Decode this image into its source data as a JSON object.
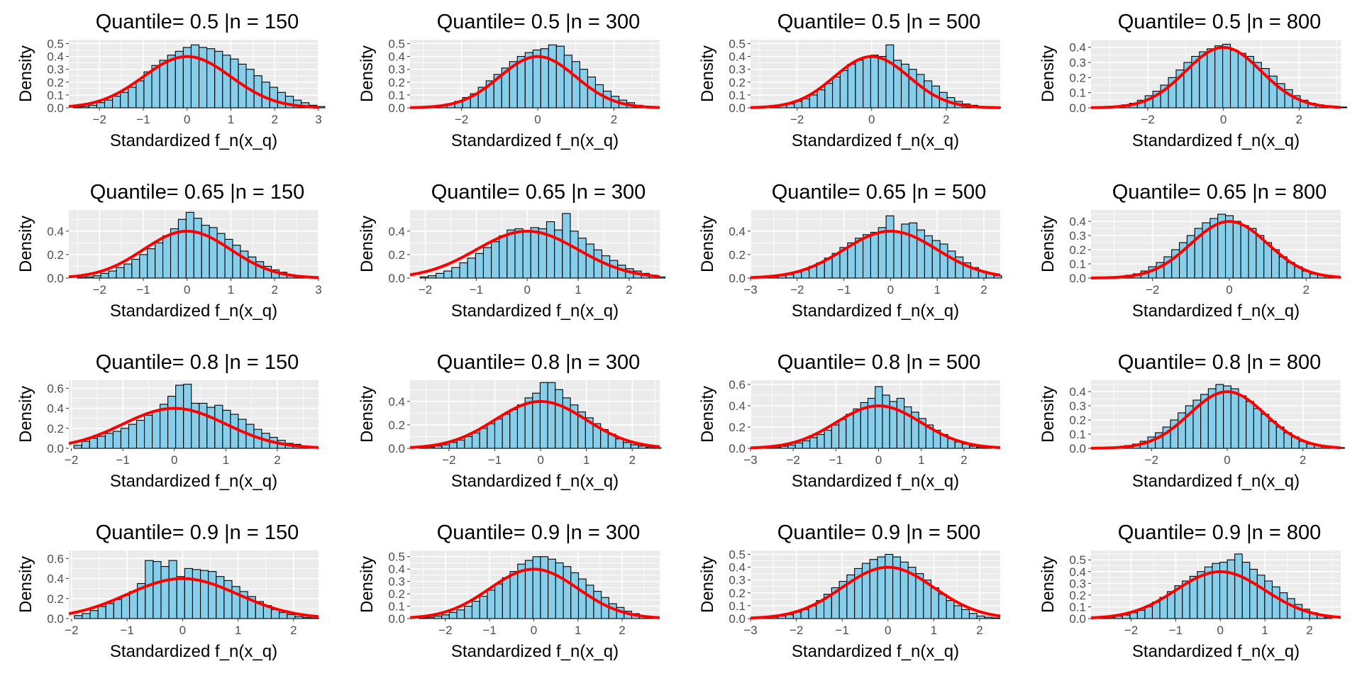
{
  "figure": {
    "type": "faceted-histogram-grid",
    "x_axis_label": "Standardized f_n(x_q)",
    "y_axis_label": "Density",
    "panel_background": "#ebebeb",
    "grid_color": "#ffffff",
    "bar_fill": "#87ceeb",
    "bar_outline": "#000000",
    "curve_color": "#ff0000",
    "curve_label": "standard normal density"
  },
  "chart_data": [
    {
      "type": "bar",
      "title": "Quantile= 0.5 |n = 150",
      "xlabel": "Standardized f_n(x_q)",
      "ylabel": "Density",
      "xlim": [
        -2.7,
        3.0
      ],
      "ylim": [
        0,
        0.53
      ],
      "xticks": [
        -2,
        -1,
        0,
        1,
        2,
        3
      ],
      "yticks": [
        0.0,
        0.1,
        0.2,
        0.3,
        0.4,
        0.5
      ],
      "yticklabels": [
        "0.0",
        "0.1",
        "0.2",
        "0.3",
        "0.4",
        "0.5"
      ],
      "bins": {
        "start": -2.6,
        "width": 0.1795,
        "values": [
          0.005,
          0.01,
          0.02,
          0.04,
          0.06,
          0.09,
          0.12,
          0.16,
          0.21,
          0.28,
          0.33,
          0.37,
          0.41,
          0.44,
          0.47,
          0.49,
          0.47,
          0.46,
          0.44,
          0.41,
          0.38,
          0.34,
          0.3,
          0.25,
          0.2,
          0.16,
          0.12,
          0.09,
          0.06,
          0.04,
          0.02,
          0.01
        ]
      }
    },
    {
      "type": "bar",
      "title": "Quantile= 0.5 |n = 300",
      "xlabel": "Standardized f_n(x_q)",
      "ylabel": "Density",
      "xlim": [
        -3.35,
        3.2
      ],
      "ylim": [
        0,
        0.53
      ],
      "xticks": [
        -2,
        0,
        2
      ],
      "yticks": [
        0.0,
        0.1,
        0.2,
        0.3,
        0.4,
        0.5
      ],
      "yticklabels": [
        "0.0",
        "0.1",
        "0.2",
        "0.3",
        "0.4",
        "0.5"
      ],
      "bins": {
        "start": -3.2,
        "width": 0.205,
        "values": [
          0.005,
          0.005,
          0.01,
          0.02,
          0.03,
          0.05,
          0.08,
          0.11,
          0.16,
          0.21,
          0.26,
          0.31,
          0.36,
          0.4,
          0.43,
          0.45,
          0.46,
          0.49,
          0.48,
          0.41,
          0.36,
          0.3,
          0.24,
          0.18,
          0.13,
          0.09,
          0.06,
          0.04,
          0.02,
          0.01,
          0.005
        ]
      }
    },
    {
      "type": "bar",
      "title": "Quantile= 0.5 |n = 500",
      "xlabel": "Standardized f_n(x_q)",
      "ylabel": "Density",
      "xlim": [
        -3.25,
        3.45
      ],
      "ylim": [
        0,
        0.53
      ],
      "xticks": [
        -2,
        0,
        2
      ],
      "yticks": [
        0.0,
        0.1,
        0.2,
        0.3,
        0.4,
        0.5
      ],
      "yticklabels": [
        "0.0",
        "0.1",
        "0.2",
        "0.3",
        "0.4",
        "0.5"
      ],
      "bins": {
        "start": -3.1,
        "width": 0.205,
        "values": [
          0.005,
          0.01,
          0.01,
          0.02,
          0.03,
          0.05,
          0.07,
          0.1,
          0.14,
          0.19,
          0.24,
          0.29,
          0.34,
          0.37,
          0.39,
          0.41,
          0.4,
          0.49,
          0.37,
          0.34,
          0.3,
          0.26,
          0.21,
          0.17,
          0.12,
          0.08,
          0.05,
          0.03,
          0.02,
          0.01,
          0.01,
          0.005
        ]
      }
    },
    {
      "type": "bar",
      "title": "Quantile= 0.5 |n = 800",
      "xlabel": "Standardized f_n(x_q)",
      "ylabel": "Density",
      "xlim": [
        -3.5,
        3.1
      ],
      "ylim": [
        0,
        0.45
      ],
      "xticks": [
        -2,
        0,
        2
      ],
      "yticks": [
        0.0,
        0.1,
        0.2,
        0.3,
        0.4
      ],
      "yticklabels": [
        "0.0",
        "0.1",
        "0.2",
        "0.3",
        "0.4"
      ],
      "bins": {
        "start": -3.3,
        "width": 0.205,
        "values": [
          0.005,
          0.005,
          0.01,
          0.02,
          0.03,
          0.05,
          0.08,
          0.11,
          0.15,
          0.2,
          0.25,
          0.3,
          0.34,
          0.37,
          0.39,
          0.41,
          0.42,
          0.38,
          0.36,
          0.34,
          0.3,
          0.26,
          0.21,
          0.16,
          0.12,
          0.08,
          0.05,
          0.03,
          0.02,
          0.01,
          0.005,
          0.005
        ]
      }
    },
    {
      "type": "bar",
      "title": "Quantile= 0.65 |n = 150",
      "xlabel": "Standardized f_n(x_q)",
      "ylabel": "Density",
      "xlim": [
        -2.7,
        3.0
      ],
      "ylim": [
        0,
        0.58
      ],
      "xticks": [
        -2,
        -1,
        0,
        1,
        2,
        3
      ],
      "yticks": [
        0.0,
        0.2,
        0.4
      ],
      "yticklabels": [
        "0.0",
        "0.2",
        "0.4"
      ],
      "bins": {
        "start": -2.5,
        "width": 0.177,
        "values": [
          0.005,
          0.01,
          0.02,
          0.04,
          0.06,
          0.09,
          0.12,
          0.16,
          0.2,
          0.25,
          0.3,
          0.36,
          0.42,
          0.5,
          0.56,
          0.51,
          0.45,
          0.43,
          0.38,
          0.33,
          0.28,
          0.23,
          0.18,
          0.14,
          0.1,
          0.07,
          0.05,
          0.03,
          0.02,
          0.01,
          0.005
        ]
      }
    },
    {
      "type": "bar",
      "title": "Quantile= 0.65 |n = 300",
      "xlabel": "Standardized f_n(x_q)",
      "ylabel": "Density",
      "xlim": [
        -2.3,
        2.6
      ],
      "ylim": [
        0,
        0.58
      ],
      "xticks": [
        -2,
        -1,
        0,
        1,
        2
      ],
      "yticks": [
        0.0,
        0.2,
        0.4
      ],
      "yticklabels": [
        "0.0",
        "0.2",
        "0.4"
      ],
      "bins": {
        "start": -2.1,
        "width": 0.155,
        "values": [
          0.01,
          0.02,
          0.04,
          0.06,
          0.09,
          0.13,
          0.17,
          0.21,
          0.26,
          0.31,
          0.36,
          0.41,
          0.42,
          0.4,
          0.43,
          0.42,
          0.48,
          0.41,
          0.55,
          0.4,
          0.34,
          0.29,
          0.24,
          0.19,
          0.15,
          0.11,
          0.08,
          0.06,
          0.04,
          0.02,
          0.01
        ]
      }
    },
    {
      "type": "bar",
      "title": "Quantile= 0.65 |n = 500",
      "xlabel": "Standardized f_n(x_q)",
      "ylabel": "Density",
      "xlim": [
        -3.0,
        2.35
      ],
      "ylim": [
        0,
        0.58
      ],
      "xticks": [
        -3,
        -2,
        -1,
        0,
        1,
        2
      ],
      "yticks": [
        0.0,
        0.2,
        0.4
      ],
      "yticklabels": [
        "0.0",
        "0.2",
        "0.4"
      ],
      "bins": {
        "start": -2.9,
        "width": 0.165,
        "values": [
          0.005,
          0.01,
          0.01,
          0.02,
          0.03,
          0.05,
          0.07,
          0.1,
          0.13,
          0.17,
          0.21,
          0.26,
          0.3,
          0.34,
          0.37,
          0.39,
          0.43,
          0.53,
          0.39,
          0.46,
          0.47,
          0.41,
          0.36,
          0.32,
          0.29,
          0.23,
          0.18,
          0.13,
          0.09,
          0.06,
          0.04,
          0.02
        ]
      }
    },
    {
      "type": "bar",
      "title": "Quantile= 0.65 |n = 800",
      "xlabel": "Standardized f_n(x_q)",
      "ylabel": "Density",
      "xlim": [
        -3.6,
        2.9
      ],
      "ylim": [
        0,
        0.48
      ],
      "xticks": [
        -2,
        0,
        2
      ],
      "yticks": [
        0.0,
        0.1,
        0.2,
        0.3,
        0.4
      ],
      "yticklabels": [
        "0.0",
        "0.1",
        "0.2",
        "0.3",
        "0.4"
      ],
      "bins": {
        "start": -3.3,
        "width": 0.2,
        "values": [
          0.005,
          0.005,
          0.01,
          0.02,
          0.03,
          0.05,
          0.08,
          0.11,
          0.15,
          0.2,
          0.25,
          0.3,
          0.35,
          0.39,
          0.42,
          0.45,
          0.44,
          0.4,
          0.37,
          0.35,
          0.3,
          0.25,
          0.2,
          0.15,
          0.11,
          0.08,
          0.05,
          0.03,
          0.02,
          0.01,
          0.005
        ]
      }
    },
    {
      "type": "bar",
      "title": "Quantile= 0.8 |n = 150",
      "xlabel": "Standardized f_n(x_q)",
      "ylabel": "Density",
      "xlim": [
        -2.05,
        2.8
      ],
      "ylim": [
        0,
        0.68
      ],
      "xticks": [
        -2,
        -1,
        0,
        1,
        2
      ],
      "yticks": [
        0.0,
        0.2,
        0.4,
        0.6
      ],
      "yticklabels": [
        "0.0",
        "0.2",
        "0.4",
        "0.6"
      ],
      "bins": {
        "start": -1.95,
        "width": 0.152,
        "values": [
          0.03,
          0.07,
          0.1,
          0.12,
          0.15,
          0.17,
          0.2,
          0.24,
          0.28,
          0.33,
          0.37,
          0.44,
          0.52,
          0.63,
          0.64,
          0.45,
          0.45,
          0.41,
          0.43,
          0.38,
          0.34,
          0.29,
          0.24,
          0.19,
          0.15,
          0.11,
          0.08,
          0.05,
          0.04,
          0.02,
          0.01
        ]
      }
    },
    {
      "type": "bar",
      "title": "Quantile= 0.8 |n = 300",
      "xlabel": "Standardized f_n(x_q)",
      "ylabel": "Density",
      "xlim": [
        -2.85,
        2.6
      ],
      "ylim": [
        0,
        0.58
      ],
      "xticks": [
        -2,
        -1,
        0,
        1,
        2
      ],
      "yticks": [
        0.0,
        0.2,
        0.4
      ],
      "yticklabels": [
        "0.0",
        "0.2",
        "0.4"
      ],
      "bins": {
        "start": -2.65,
        "width": 0.165,
        "values": [
          0.005,
          0.01,
          0.02,
          0.03,
          0.05,
          0.07,
          0.1,
          0.13,
          0.17,
          0.21,
          0.25,
          0.29,
          0.33,
          0.37,
          0.43,
          0.47,
          0.56,
          0.56,
          0.5,
          0.43,
          0.37,
          0.31,
          0.26,
          0.21,
          0.16,
          0.12,
          0.08,
          0.05,
          0.03,
          0.02,
          0.01,
          0.005
        ]
      }
    },
    {
      "type": "bar",
      "title": "Quantile= 0.8 |n = 500",
      "xlabel": "Standardized f_n(x_q)",
      "ylabel": "Density",
      "xlim": [
        -3.0,
        2.85
      ],
      "ylim": [
        0,
        0.64
      ],
      "xticks": [
        -3,
        -2,
        -1,
        0,
        1,
        2
      ],
      "yticks": [
        0.0,
        0.2,
        0.4,
        0.6
      ],
      "yticklabels": [
        "0.0",
        "0.2",
        "0.4",
        "0.6"
      ],
      "bins": {
        "start": -2.8,
        "width": 0.17,
        "values": [
          0.005,
          0.005,
          0.01,
          0.02,
          0.03,
          0.05,
          0.07,
          0.1,
          0.13,
          0.17,
          0.22,
          0.27,
          0.32,
          0.37,
          0.43,
          0.47,
          0.58,
          0.5,
          0.44,
          0.47,
          0.39,
          0.34,
          0.28,
          0.22,
          0.17,
          0.13,
          0.09,
          0.06,
          0.04,
          0.02,
          0.01,
          0.005
        ]
      }
    },
    {
      "type": "bar",
      "title": "Quantile= 0.8 |n = 800",
      "xlabel": "Standardized f_n(x_q)",
      "ylabel": "Density",
      "xlim": [
        -3.6,
        3.0
      ],
      "ylim": [
        0,
        0.48
      ],
      "xticks": [
        -2,
        0,
        2
      ],
      "yticks": [
        0.0,
        0.1,
        0.2,
        0.3,
        0.4
      ],
      "yticklabels": [
        "0.0",
        "0.1",
        "0.2",
        "0.3",
        "0.4"
      ],
      "bins": {
        "start": -3.3,
        "width": 0.2,
        "values": [
          0.005,
          0.005,
          0.01,
          0.02,
          0.03,
          0.05,
          0.08,
          0.11,
          0.15,
          0.2,
          0.25,
          0.3,
          0.34,
          0.38,
          0.42,
          0.45,
          0.44,
          0.42,
          0.37,
          0.33,
          0.28,
          0.24,
          0.19,
          0.15,
          0.11,
          0.08,
          0.05,
          0.03,
          0.02,
          0.01,
          0.005,
          0.005
        ]
      }
    },
    {
      "type": "bar",
      "title": "Quantile= 0.9 |n = 150",
      "xlabel": "Standardized f_n(x_q)",
      "ylabel": "Density",
      "xlim": [
        -2.05,
        2.45
      ],
      "ylim": [
        0,
        0.68
      ],
      "xticks": [
        -2,
        -1,
        0,
        1,
        2
      ],
      "yticks": [
        0.0,
        0.2,
        0.4,
        0.6
      ],
      "yticklabels": [
        "0.0",
        "0.2",
        "0.4",
        "0.6"
      ],
      "bins": {
        "start": -1.95,
        "width": 0.142,
        "values": [
          0.03,
          0.05,
          0.08,
          0.12,
          0.15,
          0.19,
          0.23,
          0.27,
          0.35,
          0.58,
          0.57,
          0.52,
          0.58,
          0.42,
          0.5,
          0.49,
          0.48,
          0.47,
          0.42,
          0.38,
          0.32,
          0.27,
          0.22,
          0.17,
          0.13,
          0.09,
          0.06,
          0.04,
          0.02,
          0.01,
          0.005
        ]
      }
    },
    {
      "type": "bar",
      "title": "Quantile= 0.9 |n = 300",
      "xlabel": "Standardized f_n(x_q)",
      "ylabel": "Density",
      "xlim": [
        -2.8,
        2.85
      ],
      "ylim": [
        0,
        0.55
      ],
      "xticks": [
        -2,
        -1,
        0,
        1,
        2
      ],
      "yticks": [
        0.0,
        0.1,
        0.2,
        0.3,
        0.4,
        0.5
      ],
      "yticklabels": [
        "0.0",
        "0.1",
        "0.2",
        "0.3",
        "0.4",
        "0.5"
      ],
      "bins": {
        "start": -2.6,
        "width": 0.172,
        "values": [
          0.005,
          0.01,
          0.02,
          0.03,
          0.05,
          0.07,
          0.1,
          0.14,
          0.18,
          0.23,
          0.28,
          0.33,
          0.38,
          0.44,
          0.47,
          0.5,
          0.5,
          0.48,
          0.45,
          0.42,
          0.37,
          0.32,
          0.27,
          0.22,
          0.17,
          0.12,
          0.09,
          0.06,
          0.04,
          0.02,
          0.01
        ]
      }
    },
    {
      "type": "bar",
      "title": "Quantile= 0.9 |n = 500",
      "xlabel": "Standardized f_n(x_q)",
      "ylabel": "Density",
      "xlim": [
        -3.0,
        2.45
      ],
      "ylim": [
        0,
        0.53
      ],
      "xticks": [
        -3,
        -2,
        -1,
        0,
        1,
        2
      ],
      "yticks": [
        0.0,
        0.1,
        0.2,
        0.3,
        0.4,
        0.5
      ],
      "yticklabels": [
        "0.0",
        "0.1",
        "0.2",
        "0.3",
        "0.4",
        "0.5"
      ],
      "bins": {
        "start": -2.9,
        "width": 0.167,
        "values": [
          0.005,
          0.005,
          0.01,
          0.02,
          0.03,
          0.05,
          0.07,
          0.1,
          0.14,
          0.19,
          0.24,
          0.29,
          0.34,
          0.39,
          0.43,
          0.46,
          0.48,
          0.5,
          0.48,
          0.44,
          0.4,
          0.35,
          0.3,
          0.24,
          0.19,
          0.14,
          0.1,
          0.07,
          0.04,
          0.02,
          0.01,
          0.005
        ]
      }
    },
    {
      "type": "bar",
      "title": "Quantile= 0.9 |n = 800",
      "xlabel": "Standardized f_n(x_q)",
      "ylabel": "Density",
      "xlim": [
        -2.9,
        2.7
      ],
      "ylim": [
        0,
        0.58
      ],
      "xticks": [
        -2,
        -1,
        0,
        1,
        2
      ],
      "yticks": [
        0.0,
        0.1,
        0.2,
        0.3,
        0.4,
        0.5
      ],
      "yticklabels": [
        "0.0",
        "0.1",
        "0.2",
        "0.3",
        "0.4",
        "0.5"
      ],
      "bins": {
        "start": -2.7,
        "width": 0.168,
        "values": [
          0.005,
          0.01,
          0.02,
          0.03,
          0.05,
          0.07,
          0.1,
          0.14,
          0.18,
          0.23,
          0.28,
          0.32,
          0.36,
          0.4,
          0.44,
          0.47,
          0.48,
          0.5,
          0.55,
          0.48,
          0.42,
          0.37,
          0.32,
          0.27,
          0.22,
          0.17,
          0.12,
          0.08,
          0.05,
          0.03,
          0.01
        ]
      }
    }
  ]
}
